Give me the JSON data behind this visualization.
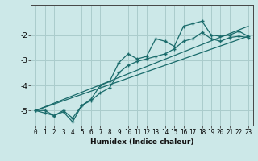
{
  "title": "",
  "xlabel": "Humidex (Indice chaleur)",
  "xlim": [
    -0.5,
    23.5
  ],
  "ylim": [
    -5.6,
    -0.8
  ],
  "yticks": [
    -5,
    -4,
    -3,
    -2
  ],
  "xticks": [
    0,
    1,
    2,
    3,
    4,
    5,
    6,
    7,
    8,
    9,
    10,
    11,
    12,
    13,
    14,
    15,
    16,
    17,
    18,
    19,
    20,
    21,
    22,
    23
  ],
  "bg_color": "#cce8e8",
  "grid_color": "#aacccc",
  "line_color": "#1a6b6b",
  "line1_x": [
    0,
    1,
    2,
    3,
    4,
    5,
    6,
    7,
    8,
    9,
    10,
    11,
    12,
    13,
    14,
    15,
    16,
    17,
    18,
    19,
    20,
    21,
    22,
    23
  ],
  "line1_y": [
    -5.0,
    -5.1,
    -5.2,
    -5.0,
    -5.3,
    -4.8,
    -4.55,
    -4.0,
    -3.85,
    -3.1,
    -2.75,
    -2.95,
    -2.85,
    -2.15,
    -2.25,
    -2.45,
    -1.65,
    -1.55,
    -1.45,
    -2.0,
    -2.05,
    -2.0,
    -1.85,
    -2.05
  ],
  "line2_x": [
    0,
    1,
    2,
    3,
    4,
    5,
    6,
    7,
    8,
    9,
    10,
    11,
    12,
    13,
    14,
    15,
    16,
    17,
    18,
    19,
    20,
    21,
    22,
    23
  ],
  "line2_y": [
    -5.0,
    -5.0,
    -5.2,
    -5.05,
    -5.45,
    -4.8,
    -4.6,
    -4.3,
    -4.1,
    -3.5,
    -3.2,
    -3.05,
    -2.95,
    -2.85,
    -2.75,
    -2.55,
    -2.25,
    -2.15,
    -1.9,
    -2.15,
    -2.25,
    -2.1,
    -2.05,
    -2.1
  ],
  "line3_x": [
    0,
    23
  ],
  "line3_y": [
    -5.0,
    -1.65
  ],
  "line4_x": [
    0,
    23
  ],
  "line4_y": [
    -5.0,
    -2.05
  ]
}
